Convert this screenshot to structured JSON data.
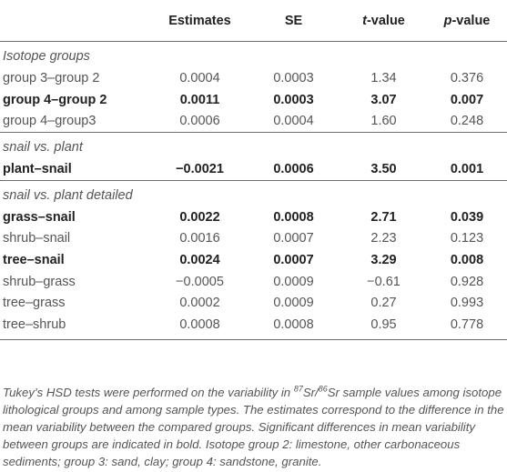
{
  "headers": {
    "estimates": "Estimates",
    "se": "SE",
    "t_value": "t",
    "t_value_suffix": "-value",
    "p_value": "p",
    "p_value_suffix": "-value"
  },
  "groups": [
    {
      "title": "Isotope groups",
      "rows": [
        {
          "label": "group 3–group 2",
          "estimate": "0.0004",
          "se": "0.0003",
          "t": "1.34",
          "p": "0.376",
          "bold": false
        },
        {
          "label": "group 4–group 2",
          "estimate": "0.0011",
          "se": "0.0003",
          "t": "3.07",
          "p": "0.007",
          "bold": true
        },
        {
          "label": "group 4–group3",
          "estimate": "0.0006",
          "se": "0.0004",
          "t": "1.60",
          "p": "0.248",
          "bold": false
        }
      ]
    },
    {
      "title": "snail vs. plant",
      "rows": [
        {
          "label": "plant–snail",
          "estimate": "−0.0021",
          "se": "0.0006",
          "t": "3.50",
          "p": "0.001",
          "bold": true
        }
      ]
    },
    {
      "title": "snail vs. plant detailed",
      "rows": [
        {
          "label": "grass–snail",
          "estimate": "0.0022",
          "se": "0.0008",
          "t": "2.71",
          "p": "0.039",
          "bold": true
        },
        {
          "label": "shrub–snail",
          "estimate": "0.0016",
          "se": "0.0007",
          "t": "2.23",
          "p": "0.123",
          "bold": false
        },
        {
          "label": "tree–snail",
          "estimate": "0.0024",
          "se": "0.0007",
          "t": "3.29",
          "p": "0.008",
          "bold": true
        },
        {
          "label": "shrub–grass",
          "estimate": "−0.0005",
          "se": "0.0009",
          "t": "−0.61",
          "p": "0.928",
          "bold": false
        },
        {
          "label": "tree–grass",
          "estimate": "0.0002",
          "se": "0.0009",
          "t": "0.27",
          "p": "0.993",
          "bold": false
        },
        {
          "label": "tree–shrub",
          "estimate": "0.0008",
          "se": "0.0008",
          "t": "0.95",
          "p": "0.778",
          "bold": false
        }
      ]
    }
  ],
  "footnote": {
    "part1": "Tukey’s HSD tests were performed on the variability in ",
    "sup1": "87",
    "part2": "Sr/",
    "sup2": "86",
    "part3": "Sr sample values among isotope lithological groups and among sample types. The estimates correspond to the difference in the mean variability between the compared groups. Significant differences in mean variability between groups are indicated in bold. Isotope group 2: limestone, other carbonaceous sediments; group 3: sand, clay; group 4: sandstone, granite."
  }
}
